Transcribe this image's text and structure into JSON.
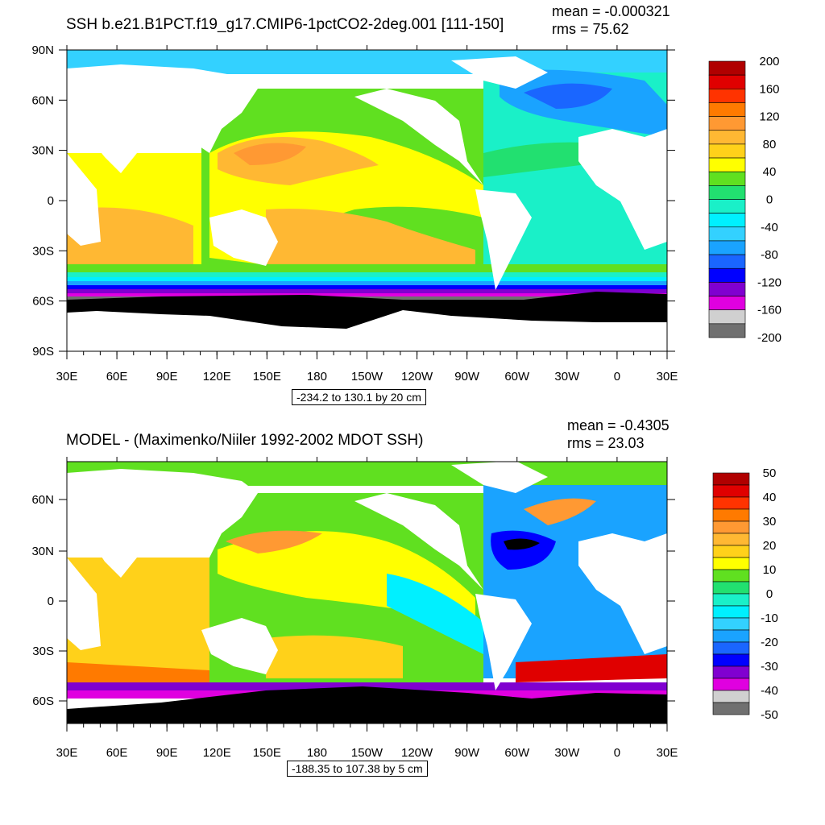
{
  "colors": {
    "top": [
      "#707070",
      "#d0d0d0",
      "#e000e0",
      "#8000d0",
      "#0000ff",
      "#1a66ff",
      "#1aa3ff",
      "#33d1ff",
      "#00f0ff",
      "#1af0c8",
      "#22e070",
      "#60e020",
      "#ffff00",
      "#ffd11a",
      "#ffb833",
      "#ff9933",
      "#ff7a00",
      "#ff3300",
      "#e00000",
      "#b00000"
    ],
    "bottom": [
      "#707070",
      "#d0d0d0",
      "#e000e0",
      "#8000d0",
      "#0000ff",
      "#1a66ff",
      "#1aa3ff",
      "#33d1ff",
      "#00f0ff",
      "#1af0c8",
      "#22e070",
      "#60e020",
      "#ffff00",
      "#ffd11a",
      "#ffb833",
      "#ff9933",
      "#ff7a00",
      "#ff3300",
      "#e00000",
      "#b00000"
    ],
    "land": "#ffffff",
    "ice": "#000000"
  },
  "chart_data": [
    {
      "type": "heatmap",
      "title": "SSH b.e21.B1PCT.f19_g17.CMIP6-1pctCO2-2deg.001 [111-150]",
      "stats": {
        "mean": "mean = -0.000321",
        "rms": "rms = 75.62"
      },
      "subtitle": "-234.2 to 130.1 by 20 cm",
      "x_ticks": [
        "30E",
        "60E",
        "90E",
        "120E",
        "150E",
        "180",
        "150W",
        "120W",
        "90W",
        "60W",
        "30W",
        "0",
        "30E"
      ],
      "y_ticks": [
        "90N",
        "60N",
        "30N",
        "0",
        "30S",
        "60S",
        "90S"
      ],
      "y_range": [
        -90,
        90
      ],
      "colorbar": {
        "labels": [
          "200",
          "160",
          "120",
          "80",
          "40",
          "0",
          "-40",
          "-80",
          "-120",
          "-160",
          "-200"
        ],
        "min": -200,
        "max": 200,
        "levels": 20
      }
    },
    {
      "type": "heatmap",
      "title": "MODEL - (Maximenko/Niiler 1992-2002 MDOT SSH)",
      "stats": {
        "mean": "mean = -0.4305",
        "rms": "rms = 23.03"
      },
      "subtitle": "-188.35 to 107.38 by 5 cm",
      "x_ticks": [
        "30E",
        "60E",
        "90E",
        "120E",
        "150E",
        "180",
        "150W",
        "120W",
        "90W",
        "60W",
        "30W",
        "0",
        "30E"
      ],
      "y_ticks": [
        "60N",
        "30N",
        "0",
        "30S",
        "60S"
      ],
      "y_range": [
        -73,
        80
      ],
      "colorbar": {
        "labels": [
          "50",
          "40",
          "30",
          "20",
          "10",
          "0",
          "-10",
          "-20",
          "-30",
          "-40",
          "-50"
        ],
        "min": -50,
        "max": 50,
        "levels": 20
      }
    }
  ]
}
